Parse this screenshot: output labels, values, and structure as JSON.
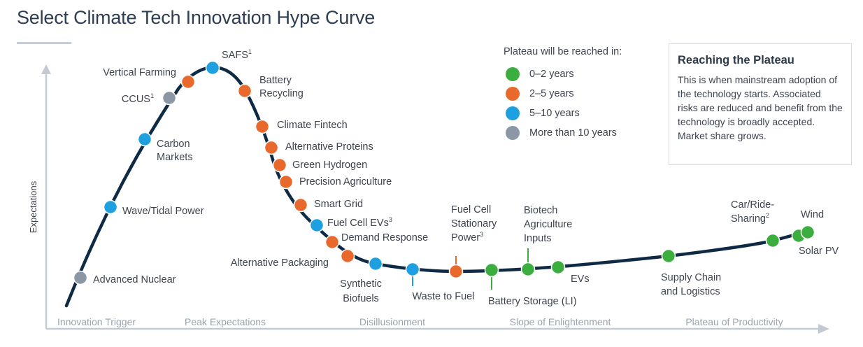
{
  "title": "Select Climate Tech Innovation Hype Curve",
  "axis": {
    "y_label": "Expectations"
  },
  "phases": [
    "Innovation Trigger",
    "Peak Expectations",
    "Disillusionment",
    "Slope of Enlightenment",
    "Plateau of Productivity"
  ],
  "legend": {
    "heading": "Plateau will be reached in:",
    "items": [
      {
        "label": "0–2 years",
        "color": "#3cae3f"
      },
      {
        "label": "2–5 years",
        "color": "#e9692c"
      },
      {
        "label": "5–10 years",
        "color": "#1ea0e0"
      },
      {
        "label": "More than 10 years",
        "color": "#8b97a5"
      }
    ]
  },
  "info_box": {
    "title": "Reaching the Plateau",
    "body": "This is when mainstream adoption of the technology starts. Associated risks are reduced and benefit from the technology is broadly accepted. Market share grows."
  },
  "colors": {
    "curve": "#0f2a44",
    "axis": "#c3cad3"
  },
  "technologies": [
    {
      "name": "Advanced Nuclear",
      "lines": [
        "Advanced Nuclear"
      ],
      "timeline": "More than 10 years"
    },
    {
      "name": "Wave/Tidal Power",
      "lines": [
        "Wave/Tidal Power"
      ],
      "timeline": "5–10 years"
    },
    {
      "name": "Carbon Markets",
      "lines": [
        "Carbon",
        "Markets"
      ],
      "timeline": "5–10 years"
    },
    {
      "name": "CCUS1",
      "lines": [
        "CCUS"
      ],
      "sup": "1",
      "timeline": "More than 10 years"
    },
    {
      "name": "Vertical Farming",
      "lines": [
        "Vertical Farming"
      ],
      "timeline": "2–5 years"
    },
    {
      "name": "SAFS1",
      "lines": [
        "SAFS"
      ],
      "sup": "1",
      "timeline": "5–10 years"
    },
    {
      "name": "Battery Recycling",
      "lines": [
        "Battery",
        "Recycling"
      ],
      "timeline": "2–5 years"
    },
    {
      "name": "Climate Fintech",
      "lines": [
        "Climate Fintech"
      ],
      "timeline": "2–5 years"
    },
    {
      "name": "Alternative Proteins",
      "lines": [
        "Alternative Proteins"
      ],
      "timeline": "2–5 years"
    },
    {
      "name": "Green Hydrogen",
      "lines": [
        "Green Hydrogen"
      ],
      "timeline": "2–5 years"
    },
    {
      "name": "Precision Agriculture",
      "lines": [
        "Precision Agriculture"
      ],
      "timeline": "2–5 years"
    },
    {
      "name": "Smart Grid",
      "lines": [
        "Smart Grid"
      ],
      "timeline": "2–5 years"
    },
    {
      "name": "Fuel Cell EVs3",
      "lines": [
        "Fuel Cell EVs"
      ],
      "sup": "3",
      "timeline": "5–10 years"
    },
    {
      "name": "Demand Response",
      "lines": [
        "Demand Response"
      ],
      "timeline": "2–5 years"
    },
    {
      "name": "Alternative Packaging",
      "lines": [
        "Alternative Packaging"
      ],
      "timeline": "2–5 years"
    },
    {
      "name": "Synthetic Biofuels",
      "lines": [
        "Synthetic",
        "Biofuels"
      ],
      "timeline": "5–10 years"
    },
    {
      "name": "Waste to Fuel",
      "lines": [
        "Waste to Fuel"
      ],
      "timeline": "5–10 years"
    },
    {
      "name": "Fuel Cell Stationary Power3",
      "lines": [
        "Fuel Cell",
        "Stationary",
        "Power"
      ],
      "sup": "3",
      "timeline": "2–5 years"
    },
    {
      "name": "Battery Storage (LI)",
      "lines": [
        "Battery Storage (LI)"
      ],
      "timeline": "0–2 years"
    },
    {
      "name": "Biotech Agriculture Inputs",
      "lines": [
        "Biotech",
        "Agriculture",
        "Inputs"
      ],
      "timeline": "0–2 years"
    },
    {
      "name": "EVs",
      "lines": [
        "EVs"
      ],
      "timeline": "0–2 years"
    },
    {
      "name": "Supply Chain and Logistics",
      "lines": [
        "Supply Chain",
        "and Logistics"
      ],
      "timeline": "0–2 years"
    },
    {
      "name": "Car/Ride-Sharing2",
      "lines": [
        "Car/Ride-",
        "Sharing"
      ],
      "sup": "2",
      "timeline": "0–2 years"
    },
    {
      "name": "Solar PV",
      "lines": [
        "Solar PV"
      ],
      "timeline": "0–2 years"
    },
    {
      "name": "Wind",
      "lines": [
        "Wind"
      ],
      "timeline": "0–2 years"
    }
  ]
}
